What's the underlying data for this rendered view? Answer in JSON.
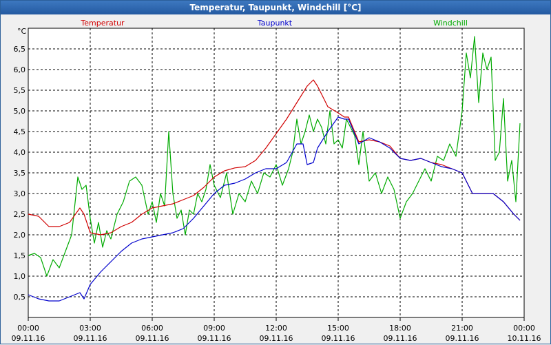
{
  "window": {
    "title": "Temperatur, Taupunkt, Windchill [°C]"
  },
  "chart_data": {
    "type": "line",
    "y_unit_label": "°C",
    "ylim": [
      0,
      7
    ],
    "yticks": [
      "0,5",
      "1,0",
      "1,5",
      "2,0",
      "2,5",
      "3,0",
      "3,5",
      "4,0",
      "4,5",
      "5,0",
      "5,5",
      "6,0",
      "6,5"
    ],
    "ytick_values": [
      0.5,
      1.0,
      1.5,
      2.0,
      2.5,
      3.0,
      3.5,
      4.0,
      4.5,
      5.0,
      5.5,
      6.0,
      6.5
    ],
    "x_hours_range": [
      0,
      24
    ],
    "xticks": [
      {
        "time": "00:00",
        "date": "09.11.16"
      },
      {
        "time": "03:00",
        "date": "09.11.16"
      },
      {
        "time": "06:00",
        "date": "09.11.16"
      },
      {
        "time": "09:00",
        "date": "09.11.16"
      },
      {
        "time": "12:00",
        "date": "09.11.16"
      },
      {
        "time": "15:00",
        "date": "09.11.16"
      },
      {
        "time": "18:00",
        "date": "09.11.16"
      },
      {
        "time": "21:00",
        "date": "09.11.16"
      },
      {
        "time": "00:00",
        "date": "10.11.16"
      }
    ],
    "grid": true,
    "series": [
      {
        "name": "Temperatur",
        "color": "#d00000",
        "x": [
          0,
          0.5,
          1.0,
          1.5,
          2.0,
          2.5,
          2.7,
          3.0,
          3.5,
          4.0,
          4.5,
          5.0,
          5.5,
          6.0,
          6.5,
          7.0,
          7.5,
          8.0,
          8.5,
          9.0,
          9.5,
          10.0,
          10.5,
          11.0,
          11.5,
          12.0,
          12.5,
          13.0,
          13.5,
          13.8,
          14.0,
          14.5,
          15.0,
          15.3,
          15.5,
          16.0,
          16.5,
          17.0,
          17.5,
          18.0,
          18.5,
          19.0,
          19.5,
          20.0,
          20.5,
          21.0,
          21.5,
          22.0,
          22.5,
          23.0,
          23.5,
          23.8
        ],
        "values": [
          2.5,
          2.45,
          2.2,
          2.2,
          2.3,
          2.65,
          2.5,
          2.05,
          2.0,
          2.05,
          2.2,
          2.3,
          2.5,
          2.65,
          2.7,
          2.75,
          2.85,
          2.95,
          3.15,
          3.4,
          3.55,
          3.62,
          3.65,
          3.8,
          4.1,
          4.45,
          4.8,
          5.2,
          5.6,
          5.75,
          5.6,
          5.1,
          4.95,
          4.85,
          4.85,
          4.25,
          4.3,
          4.25,
          4.15,
          3.85,
          3.8,
          3.85,
          3.75,
          3.7,
          3.6,
          3.5,
          3.0,
          3.0,
          3.0,
          2.8,
          2.5,
          2.35
        ]
      },
      {
        "name": "Taupunkt",
        "color": "#0000cc",
        "x": [
          0,
          0.5,
          1.0,
          1.5,
          2.0,
          2.5,
          2.7,
          3.0,
          3.5,
          4.0,
          4.5,
          5.0,
          5.5,
          6.0,
          6.5,
          7.0,
          7.5,
          8.0,
          8.5,
          9.0,
          9.5,
          10.0,
          10.5,
          11.0,
          11.5,
          12.0,
          12.5,
          13.0,
          13.3,
          13.5,
          13.8,
          14.0,
          14.5,
          15.0,
          15.3,
          15.5,
          16.0,
          16.5,
          17.0,
          17.5,
          18.0,
          18.5,
          19.0,
          19.5,
          20.0,
          20.5,
          21.0,
          21.5,
          22.0,
          22.5,
          23.0,
          23.5,
          23.8
        ],
        "values": [
          0.55,
          0.45,
          0.4,
          0.4,
          0.5,
          0.6,
          0.45,
          0.8,
          1.1,
          1.35,
          1.6,
          1.8,
          1.9,
          1.95,
          2.0,
          2.05,
          2.15,
          2.4,
          2.7,
          3.0,
          3.2,
          3.25,
          3.35,
          3.5,
          3.6,
          3.6,
          3.75,
          4.2,
          4.2,
          3.7,
          3.75,
          4.1,
          4.5,
          4.85,
          4.8,
          4.8,
          4.2,
          4.35,
          4.25,
          4.1,
          3.85,
          3.8,
          3.85,
          3.75,
          3.65,
          3.6,
          3.5,
          3.0,
          3.0,
          3.0,
          2.8,
          2.5,
          2.35
        ]
      },
      {
        "name": "Windchill",
        "color": "#00aa00",
        "x": [
          0,
          0.3,
          0.6,
          0.9,
          1.2,
          1.5,
          1.8,
          2.1,
          2.4,
          2.6,
          2.8,
          3.0,
          3.2,
          3.4,
          3.6,
          3.8,
          4.0,
          4.3,
          4.6,
          4.9,
          5.2,
          5.5,
          5.8,
          6.0,
          6.2,
          6.4,
          6.6,
          6.8,
          7.0,
          7.2,
          7.4,
          7.6,
          7.8,
          8.0,
          8.2,
          8.4,
          8.6,
          8.8,
          9.0,
          9.3,
          9.6,
          9.9,
          10.2,
          10.5,
          10.8,
          11.1,
          11.4,
          11.7,
          12.0,
          12.3,
          12.6,
          12.8,
          13.0,
          13.2,
          13.4,
          13.6,
          13.8,
          14.0,
          14.2,
          14.4,
          14.6,
          14.8,
          15.0,
          15.2,
          15.4,
          15.6,
          15.8,
          16.0,
          16.2,
          16.5,
          16.8,
          17.1,
          17.4,
          17.7,
          18.0,
          18.3,
          18.6,
          18.9,
          19.2,
          19.5,
          19.8,
          20.1,
          20.4,
          20.7,
          21.0,
          21.2,
          21.4,
          21.6,
          21.8,
          22.0,
          22.2,
          22.4,
          22.6,
          22.8,
          23.0,
          23.2,
          23.4,
          23.6,
          23.8
        ],
        "values": [
          1.5,
          1.55,
          1.45,
          1.0,
          1.4,
          1.2,
          1.6,
          2.0,
          3.4,
          3.1,
          3.2,
          2.4,
          1.8,
          2.3,
          1.7,
          2.1,
          1.9,
          2.5,
          2.8,
          3.3,
          3.4,
          3.2,
          2.5,
          2.8,
          2.3,
          3.0,
          2.7,
          4.5,
          3.0,
          2.4,
          2.6,
          2.0,
          2.6,
          2.5,
          3.0,
          2.8,
          3.1,
          3.7,
          3.2,
          2.9,
          3.5,
          2.5,
          3.0,
          2.8,
          3.3,
          3.0,
          3.5,
          3.4,
          3.7,
          3.2,
          3.6,
          4.0,
          4.8,
          4.2,
          4.5,
          4.9,
          4.5,
          4.8,
          4.6,
          4.2,
          5.0,
          4.2,
          4.3,
          4.1,
          4.8,
          4.6,
          4.4,
          3.7,
          4.5,
          3.3,
          3.5,
          3.0,
          3.4,
          3.1,
          2.4,
          2.8,
          3.0,
          3.3,
          3.6,
          3.3,
          3.9,
          3.8,
          4.2,
          3.9,
          5.0,
          6.4,
          5.8,
          6.8,
          5.2,
          6.4,
          6.0,
          6.3,
          3.8,
          4.0,
          5.3,
          3.3,
          3.8,
          2.8,
          4.7
        ]
      }
    ]
  }
}
